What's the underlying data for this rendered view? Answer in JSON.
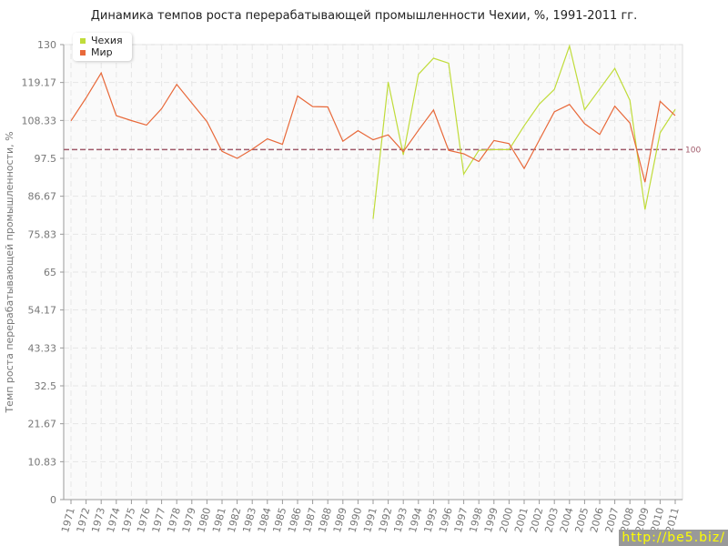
{
  "chart_data": {
    "type": "line",
    "title": "Динамика темпов роста перерабатывающей промышленности Чехии, %, 1991-2011 гг.",
    "xlabel": "",
    "ylabel": "Темп роста перерабатывающей промышленности, %",
    "ylim": [
      0,
      130
    ],
    "yticks": [
      "0",
      "10.83",
      "21.67",
      "32.5",
      "43.33",
      "54.17",
      "65",
      "75.83",
      "86.67",
      "97.5",
      "108.33",
      "119.17",
      "130"
    ],
    "grid": true,
    "legend_position": "top-left",
    "x": [
      1971,
      1972,
      1973,
      1974,
      1975,
      1976,
      1977,
      1978,
      1979,
      1980,
      1981,
      1982,
      1983,
      1984,
      1985,
      1986,
      1987,
      1988,
      1989,
      1990,
      1991,
      1992,
      1993,
      1994,
      1995,
      1996,
      1997,
      1998,
      1999,
      2000,
      2001,
      2002,
      2003,
      2004,
      2005,
      2006,
      2007,
      2008,
      2009,
      2010,
      2011
    ],
    "series": [
      {
        "name": "Чехия",
        "color": "#c0dc3a",
        "values": [
          null,
          null,
          null,
          null,
          null,
          null,
          null,
          null,
          null,
          null,
          null,
          null,
          null,
          null,
          null,
          null,
          null,
          null,
          null,
          null,
          80.2,
          119.3,
          98.5,
          121.5,
          126.1,
          124.7,
          93.0,
          99.8,
          100,
          100,
          106.8,
          113.0,
          117.2,
          129.6,
          111.4,
          117.3,
          123.2,
          114.1,
          82.9,
          104.8,
          111.5
        ]
      },
      {
        "name": "Мир",
        "color": "#e8693a",
        "values": [
          108.2,
          114.8,
          121.9,
          109.7,
          108.3,
          107.0,
          111.7,
          118.6,
          113.3,
          108.0,
          99.5,
          97.5,
          100.1,
          103.1,
          101.5,
          115.3,
          112.3,
          112.2,
          102.4,
          105.4,
          102.8,
          104.2,
          99.4,
          105.5,
          111.3,
          99.8,
          98.8,
          96.6,
          102.6,
          101.7,
          94.6,
          102.7,
          110.8,
          112.9,
          107.4,
          104.3,
          112.4,
          107.6,
          90.7,
          113.8,
          109.7
        ]
      }
    ],
    "reference_line": {
      "value": 100,
      "label": "100",
      "color": "#a05a6a"
    }
  },
  "watermark": "http://be5.biz/"
}
